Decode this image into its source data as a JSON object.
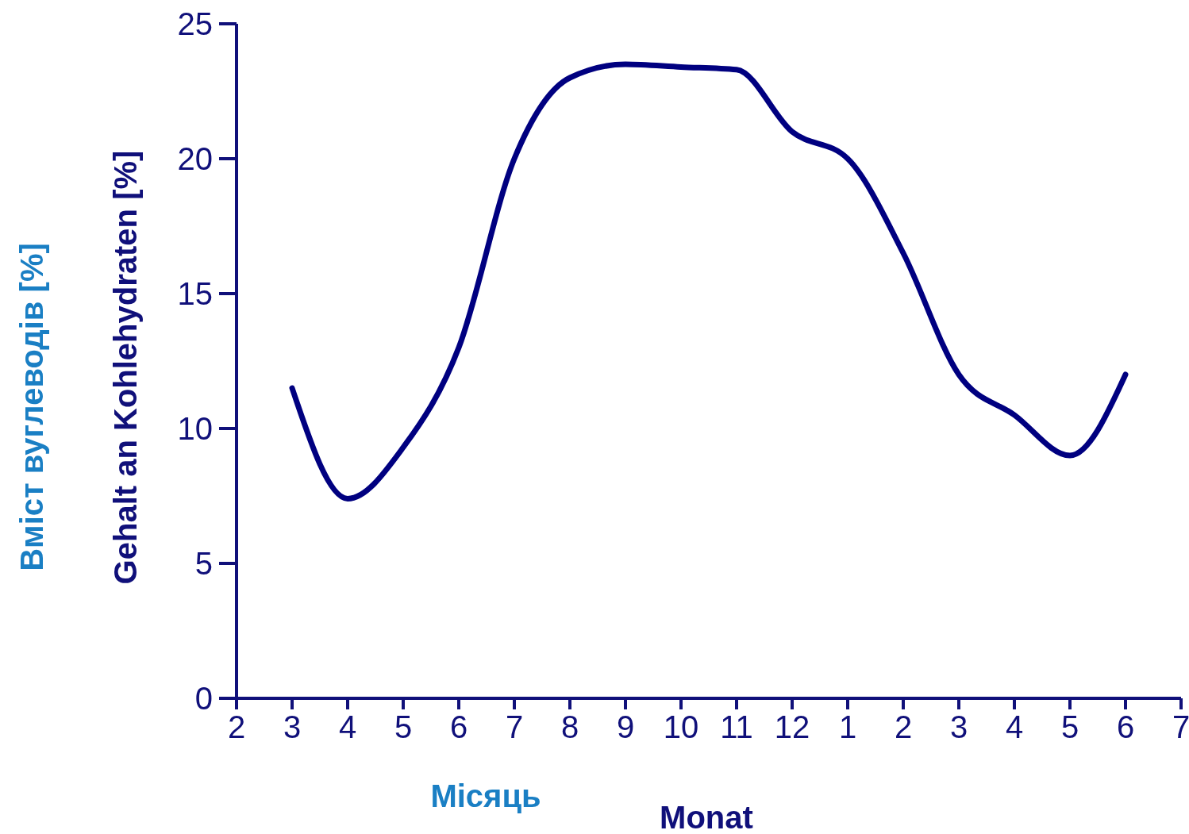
{
  "chart_data": {
    "type": "line",
    "xlabel": "Monat",
    "ylabel": "Gehalt an Kohlehydraten [%]",
    "annotations": [
      "Вміст вуглеводів [%]",
      "Місяць"
    ],
    "categories": [
      "2",
      "3",
      "4",
      "5",
      "6",
      "7",
      "8",
      "9",
      "10",
      "11",
      "12",
      "1",
      "2",
      "3",
      "4",
      "5",
      "6",
      "7"
    ],
    "series": [
      {
        "color": "#000080",
        "values": [
          null,
          11.5,
          7.4,
          9.3,
          13,
          20,
          23,
          23.5,
          23.4,
          23.3,
          21,
          20,
          16.5,
          12,
          10.5,
          9,
          12,
          null
        ]
      }
    ],
    "ylim": [
      0,
      25
    ],
    "yticks": [
      0,
      5,
      10,
      15,
      20,
      25
    ],
    "marker": "none",
    "line_style": "solid"
  }
}
